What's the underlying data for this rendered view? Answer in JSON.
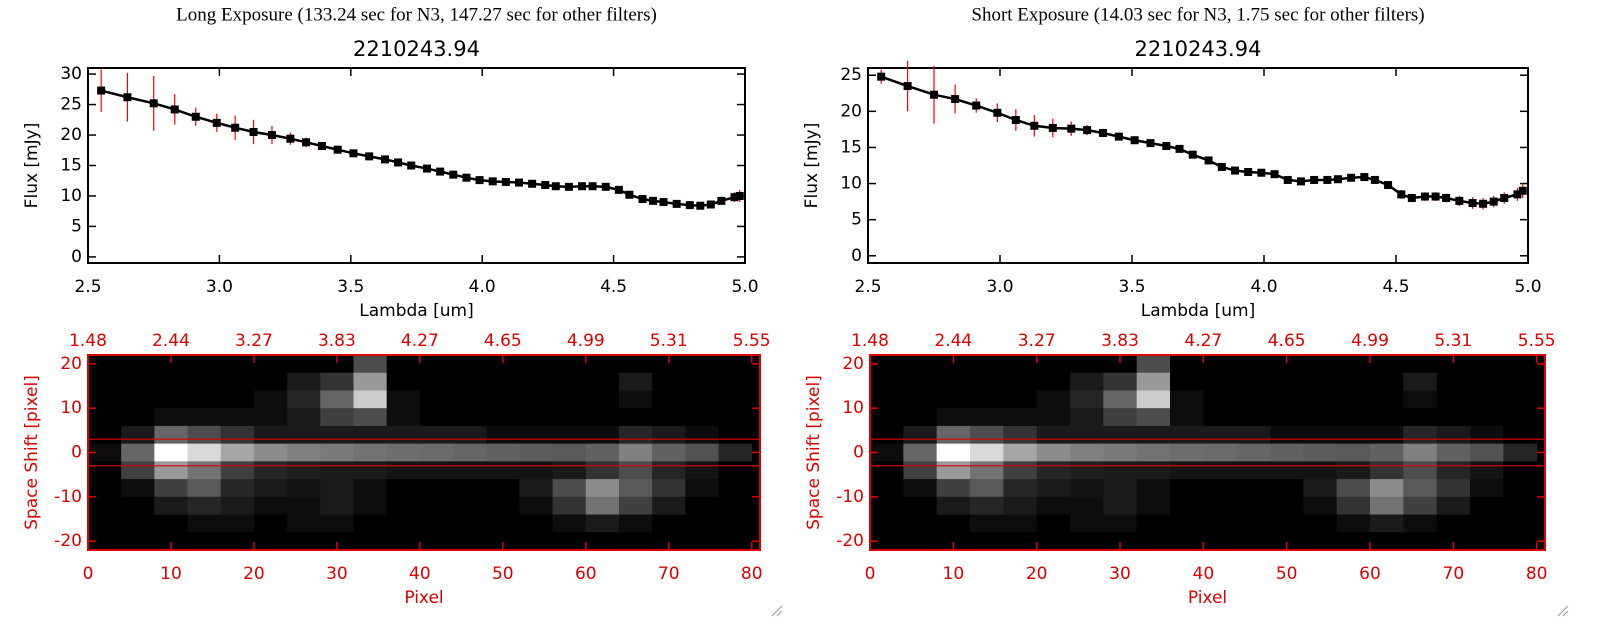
{
  "chart_data": [
    {
      "type": "line",
      "title": "Long Exposure (133.24 sec for N3, 147.27 sec for other filters)",
      "subtitle": "2210243.94",
      "xlabel": "Lambda [um]",
      "ylabel": "Flux [mJy]",
      "x": [
        2.55,
        2.65,
        2.75,
        2.83,
        2.91,
        2.99,
        3.06,
        3.13,
        3.2,
        3.27,
        3.33,
        3.39,
        3.45,
        3.51,
        3.57,
        3.63,
        3.68,
        3.73,
        3.79,
        3.84,
        3.89,
        3.94,
        3.99,
        4.04,
        4.09,
        4.14,
        4.19,
        4.24,
        4.28,
        4.33,
        4.38,
        4.42,
        4.47,
        4.52,
        4.56,
        4.61,
        4.65,
        4.69,
        4.74,
        4.79,
        4.83,
        4.87,
        4.91,
        4.96,
        4.98
      ],
      "series": [
        {
          "color": "#000000",
          "error_color": "#ff0000",
          "values": [
            27.3,
            26.2,
            25.2,
            24.2,
            23.0,
            22.0,
            21.2,
            20.5,
            20.0,
            19.4,
            18.8,
            18.2,
            17.6,
            17.0,
            16.5,
            16.0,
            15.5,
            15.0,
            14.5,
            14.0,
            13.5,
            13.0,
            12.6,
            12.4,
            12.3,
            12.2,
            12.0,
            11.8,
            11.6,
            11.5,
            11.6,
            11.6,
            11.5,
            11.0,
            10.2,
            9.5,
            9.2,
            9.0,
            8.7,
            8.5,
            8.4,
            8.6,
            9.2,
            9.8,
            10.0
          ],
          "errors": [
            3.5,
            4.0,
            4.5,
            2.5,
            1.5,
            1.5,
            2.0,
            2.0,
            1.5,
            1.0,
            0.8,
            0.6,
            0.5,
            0.5,
            0.4,
            0.4,
            0.4,
            0.4,
            0.4,
            0.4,
            0.4,
            0.4,
            0.4,
            0.4,
            0.4,
            0.4,
            0.4,
            0.4,
            0.4,
            0.4,
            0.4,
            0.4,
            0.4,
            0.4,
            0.4,
            0.4,
            0.4,
            0.4,
            0.4,
            0.5,
            0.5,
            0.5,
            0.6,
            0.8,
            1.0
          ]
        }
      ],
      "xlim": [
        2.5,
        5.0
      ],
      "xticks": [
        2.5,
        {
          "value": 3,
          "label": "3.0"
        },
        3.5,
        {
          "value": 4,
          "label": "4.0"
        },
        4.5,
        {
          "value": 5,
          "label": "5.0"
        }
      ],
      "ylim": [
        -1,
        31
      ],
      "yticks": [
        0,
        5,
        10,
        15,
        20,
        25,
        30
      ]
    },
    {
      "type": "line",
      "title": "Short Exposure (14.03 sec for N3, 1.75 sec for other filters)",
      "subtitle": "2210243.94",
      "xlabel": "Lambda [um]",
      "ylabel": "Flux [mJy]",
      "x": [
        2.55,
        2.65,
        2.75,
        2.83,
        2.91,
        2.99,
        3.06,
        3.13,
        3.2,
        3.27,
        3.33,
        3.39,
        3.45,
        3.51,
        3.57,
        3.63,
        3.68,
        3.73,
        3.79,
        3.84,
        3.89,
        3.94,
        3.99,
        4.04,
        4.09,
        4.14,
        4.19,
        4.24,
        4.28,
        4.33,
        4.38,
        4.42,
        4.47,
        4.52,
        4.56,
        4.61,
        4.65,
        4.69,
        4.74,
        4.79,
        4.83,
        4.87,
        4.91,
        4.96,
        4.98
      ],
      "series": [
        {
          "color": "#000000",
          "error_color": "#ff0000",
          "values": [
            24.8,
            23.5,
            22.3,
            21.7,
            20.8,
            19.8,
            18.8,
            18.0,
            17.7,
            17.6,
            17.4,
            17.0,
            16.5,
            16.0,
            15.6,
            15.2,
            14.8,
            14.0,
            13.2,
            12.3,
            11.8,
            11.6,
            11.5,
            11.3,
            10.5,
            10.3,
            10.5,
            10.5,
            10.6,
            10.8,
            10.9,
            10.5,
            9.8,
            8.5,
            8.0,
            8.2,
            8.2,
            8.0,
            7.6,
            7.3,
            7.2,
            7.5,
            8.0,
            8.5,
            9.0
          ],
          "errors": [
            1.0,
            3.5,
            4.0,
            2.0,
            1.0,
            1.3,
            1.5,
            1.5,
            1.3,
            1.0,
            0.7,
            0.6,
            0.5,
            0.5,
            0.5,
            0.5,
            0.5,
            0.5,
            0.5,
            0.5,
            0.5,
            0.5,
            0.5,
            0.5,
            0.5,
            0.5,
            0.5,
            0.5,
            0.5,
            0.5,
            0.5,
            0.5,
            0.5,
            0.6,
            0.6,
            0.6,
            0.6,
            0.6,
            0.7,
            0.8,
            0.8,
            0.8,
            0.8,
            0.9,
            1.0
          ]
        }
      ],
      "xlim": [
        2.5,
        5.0
      ],
      "xticks": [
        2.5,
        {
          "value": 3,
          "label": "3.0"
        },
        3.5,
        {
          "value": 4,
          "label": "4.0"
        },
        4.5,
        {
          "value": 5,
          "label": "5.0"
        }
      ],
      "ylim": [
        -1,
        26
      ],
      "yticks": [
        0,
        5,
        10,
        15,
        20,
        25
      ]
    },
    {
      "type": "heatmap",
      "xlabel": "Pixel",
      "ylabel": "Space Shift [pixel]",
      "color": "#dd0000",
      "xlim": [
        0,
        81
      ],
      "xticks": [
        0,
        10,
        20,
        30,
        40,
        50,
        60,
        70,
        80
      ],
      "x2ticks": [
        {
          "value": 0,
          "label": "1.48"
        },
        {
          "value": 10,
          "label": "2.44"
        },
        {
          "value": 20,
          "label": "3.27"
        },
        {
          "value": 30,
          "label": "3.83"
        },
        {
          "value": 40,
          "label": "4.27"
        },
        {
          "value": 50,
          "label": "4.65"
        },
        {
          "value": 60,
          "label": "4.99"
        },
        {
          "value": 70,
          "label": "5.31"
        },
        {
          "value": 80,
          "label": "5.55"
        }
      ],
      "ylim": [
        -22,
        22
      ],
      "yticks": [
        -20,
        -10,
        0,
        10,
        20
      ],
      "hlines": [
        3,
        -3
      ],
      "xbins": [
        0,
        4,
        8,
        12,
        16,
        20,
        24,
        28,
        32,
        36,
        40,
        44,
        48,
        52,
        56,
        60,
        64,
        68,
        72,
        76,
        80
      ],
      "ybins": [
        22,
        18,
        14,
        10,
        6,
        2,
        -2,
        -6,
        -10,
        -14,
        -18,
        -22
      ],
      "values": [
        [
          0,
          0,
          0,
          0,
          0,
          0,
          0,
          0,
          30,
          0,
          0,
          0,
          0,
          0,
          0,
          0,
          0,
          0,
          0,
          0
        ],
        [
          0,
          0,
          0,
          0,
          0,
          0,
          10,
          20,
          60,
          0,
          0,
          0,
          0,
          0,
          0,
          0,
          10,
          0,
          0,
          0
        ],
        [
          0,
          0,
          0,
          0,
          0,
          5,
          15,
          40,
          80,
          5,
          0,
          0,
          0,
          0,
          0,
          0,
          5,
          0,
          0,
          0
        ],
        [
          0,
          0,
          5,
          5,
          5,
          5,
          10,
          25,
          30,
          5,
          0,
          0,
          0,
          0,
          0,
          0,
          0,
          0,
          0,
          0
        ],
        [
          0,
          10,
          40,
          30,
          20,
          10,
          10,
          10,
          10,
          10,
          10,
          10,
          5,
          5,
          5,
          5,
          15,
          10,
          5,
          0
        ],
        [
          5,
          40,
          100,
          85,
          65,
          55,
          50,
          48,
          45,
          43,
          42,
          40,
          38,
          36,
          35,
          38,
          50,
          38,
          32,
          15
        ],
        [
          0,
          25,
          60,
          45,
          25,
          15,
          12,
          10,
          10,
          8,
          8,
          8,
          8,
          8,
          10,
          20,
          30,
          15,
          8,
          0
        ],
        [
          0,
          5,
          25,
          35,
          15,
          10,
          8,
          10,
          5,
          0,
          0,
          0,
          0,
          10,
          30,
          55,
          35,
          20,
          5,
          0
        ],
        [
          0,
          0,
          10,
          15,
          10,
          5,
          5,
          10,
          5,
          0,
          0,
          0,
          0,
          5,
          20,
          45,
          25,
          10,
          0,
          0
        ],
        [
          0,
          0,
          0,
          5,
          5,
          0,
          5,
          5,
          0,
          0,
          0,
          0,
          0,
          0,
          5,
          10,
          5,
          0,
          0,
          0
        ],
        [
          0,
          0,
          0,
          0,
          0,
          0,
          0,
          0,
          0,
          0,
          0,
          0,
          0,
          0,
          0,
          0,
          0,
          0,
          0,
          0
        ]
      ]
    },
    {
      "type": "heatmap",
      "xlabel": "Pixel",
      "ylabel": "Space Shift [pixel]",
      "color": "#dd0000",
      "xlim": [
        0,
        81
      ],
      "xticks": [
        0,
        10,
        20,
        30,
        40,
        50,
        60,
        70,
        80
      ],
      "x2ticks": [
        {
          "value": 0,
          "label": "1.48"
        },
        {
          "value": 10,
          "label": "2.44"
        },
        {
          "value": 20,
          "label": "3.27"
        },
        {
          "value": 30,
          "label": "3.83"
        },
        {
          "value": 40,
          "label": "4.27"
        },
        {
          "value": 50,
          "label": "4.65"
        },
        {
          "value": 60,
          "label": "4.99"
        },
        {
          "value": 70,
          "label": "5.31"
        },
        {
          "value": 80,
          "label": "5.55"
        }
      ],
      "ylim": [
        -22,
        22
      ],
      "yticks": [
        -20,
        -10,
        0,
        10,
        20
      ],
      "hlines": [
        3,
        -3
      ],
      "xbins": [
        0,
        4,
        8,
        12,
        16,
        20,
        24,
        28,
        32,
        36,
        40,
        44,
        48,
        52,
        56,
        60,
        64,
        68,
        72,
        76,
        80
      ],
      "ybins": [
        22,
        18,
        14,
        10,
        6,
        2,
        -2,
        -6,
        -10,
        -14,
        -18,
        -22
      ],
      "values": [
        [
          0,
          0,
          0,
          0,
          0,
          0,
          0,
          0,
          30,
          0,
          0,
          0,
          0,
          0,
          0,
          0,
          0,
          0,
          0,
          0
        ],
        [
          0,
          0,
          0,
          0,
          0,
          0,
          10,
          20,
          60,
          0,
          0,
          0,
          0,
          0,
          0,
          0,
          10,
          0,
          0,
          0
        ],
        [
          0,
          0,
          0,
          0,
          0,
          5,
          15,
          40,
          80,
          5,
          0,
          0,
          0,
          0,
          0,
          0,
          5,
          0,
          0,
          0
        ],
        [
          0,
          0,
          5,
          5,
          5,
          5,
          10,
          25,
          30,
          5,
          0,
          0,
          0,
          0,
          0,
          0,
          0,
          0,
          0,
          0
        ],
        [
          0,
          10,
          40,
          30,
          20,
          10,
          10,
          10,
          10,
          10,
          10,
          10,
          5,
          5,
          5,
          5,
          15,
          10,
          5,
          0
        ],
        [
          5,
          40,
          100,
          85,
          65,
          55,
          50,
          48,
          45,
          43,
          42,
          40,
          38,
          36,
          35,
          38,
          50,
          38,
          32,
          15
        ],
        [
          0,
          25,
          60,
          45,
          25,
          15,
          12,
          10,
          10,
          8,
          8,
          8,
          8,
          8,
          10,
          20,
          30,
          15,
          8,
          0
        ],
        [
          0,
          5,
          25,
          35,
          15,
          10,
          8,
          10,
          5,
          0,
          0,
          0,
          0,
          10,
          30,
          55,
          35,
          20,
          5,
          0
        ],
        [
          0,
          0,
          10,
          15,
          10,
          5,
          5,
          10,
          5,
          0,
          0,
          0,
          0,
          5,
          20,
          45,
          25,
          10,
          0,
          0
        ],
        [
          0,
          0,
          0,
          5,
          5,
          0,
          5,
          5,
          0,
          0,
          0,
          0,
          0,
          0,
          5,
          10,
          5,
          0,
          0,
          0
        ],
        [
          0,
          0,
          0,
          0,
          0,
          0,
          0,
          0,
          0,
          0,
          0,
          0,
          0,
          0,
          0,
          0,
          0,
          0,
          0,
          0
        ]
      ]
    }
  ]
}
